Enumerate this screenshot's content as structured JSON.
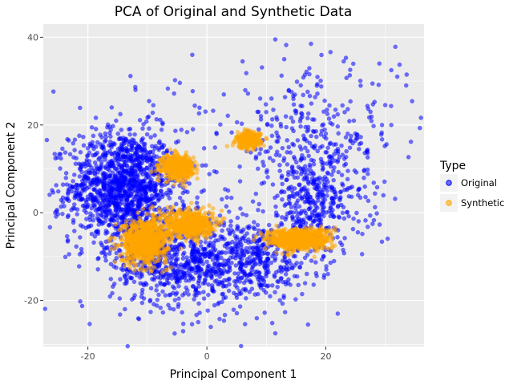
{
  "chart_data": {
    "type": "scatter",
    "title": "PCA of Original and Synthetic Data",
    "xlabel": "Principal Component 1",
    "ylabel": "Principal Component 2",
    "xlim": [
      -27.5,
      36.5
    ],
    "ylim": [
      -30.5,
      43
    ],
    "xticks": [
      -20,
      0,
      20
    ],
    "yticks": [
      -20,
      0,
      20,
      40
    ],
    "grid": true,
    "legend": {
      "title": "Type",
      "position": "right",
      "entries": [
        {
          "label": "Original",
          "color": "#0000ff"
        },
        {
          "label": "Synthetic",
          "color": "#ffa500"
        }
      ]
    },
    "series": [
      {
        "name": "Original",
        "color": "#0000ff",
        "clusters": [
          {
            "cx": -14,
            "cy": 6,
            "sx": 4.5,
            "sy": 6.5,
            "n": 1300
          },
          {
            "cx": -5,
            "cy": -11,
            "sx": 5.5,
            "sy": 5.0,
            "n": 650
          },
          {
            "cx": 8,
            "cy": -11,
            "sx": 4.5,
            "sy": 4.5,
            "n": 350
          },
          {
            "cx": 18,
            "cy": 2,
            "sx": 4.5,
            "sy": 6.5,
            "n": 400
          },
          {
            "cx": 18,
            "cy": 18,
            "sx": 7.5,
            "sy": 7.0,
            "n": 260
          },
          {
            "cx": 0,
            "cy": 0,
            "sx": 15,
            "sy": 15,
            "n": 180
          }
        ],
        "points": [
          [
            11.5,
            39.5
          ],
          [
            17.5,
            38.5
          ],
          [
            6,
            34.5
          ],
          [
            13,
            35
          ],
          [
            23,
            34.5
          ],
          [
            29,
            34
          ],
          [
            31,
            32.5
          ],
          [
            33.5,
            29
          ],
          [
            32,
            31
          ],
          [
            -12,
            28
          ],
          [
            -9,
            24.5
          ],
          [
            -25.5,
            0
          ],
          [
            -24,
            1.5
          ],
          [
            -4,
            -27
          ],
          [
            11.5,
            -27.5
          ],
          [
            17,
            -25.5
          ],
          [
            22,
            -23
          ],
          [
            -16,
            24
          ],
          [
            27.5,
            23
          ],
          [
            31,
            20
          ]
        ]
      },
      {
        "name": "Synthetic",
        "color": "#ffa500",
        "clusters": [
          {
            "cx": -5,
            "cy": 10.5,
            "sx": 1.3,
            "sy": 1.3,
            "n": 500
          },
          {
            "cx": 7,
            "cy": 16.5,
            "sx": 1.0,
            "sy": 0.9,
            "n": 300
          },
          {
            "cx": -10.5,
            "cy": -6.5,
            "sx": 1.9,
            "sy": 2.4,
            "n": 800
          },
          {
            "cx": -3,
            "cy": -2.5,
            "sx": 2.0,
            "sy": 1.6,
            "n": 600
          },
          {
            "cx": 15.5,
            "cy": -6,
            "sx": 2.6,
            "sy": 1.2,
            "n": 700
          }
        ],
        "points": []
      }
    ]
  }
}
